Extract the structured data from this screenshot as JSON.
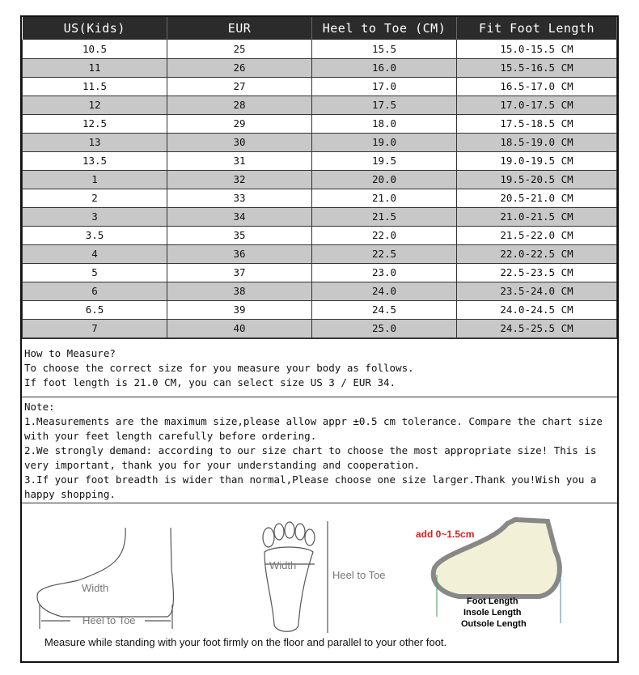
{
  "table": {
    "headers": [
      "US(Kids)",
      "EUR",
      "Heel to Toe (CM)",
      "Fit Foot Length"
    ],
    "rows": [
      [
        "10.5",
        "25",
        "15.5",
        "15.0-15.5 CM"
      ],
      [
        "11",
        "26",
        "16.0",
        "15.5-16.5 CM"
      ],
      [
        "11.5",
        "27",
        "17.0",
        "16.5-17.0 CM"
      ],
      [
        "12",
        "28",
        "17.5",
        "17.0-17.5 CM"
      ],
      [
        "12.5",
        "29",
        "18.0",
        "17.5-18.5 CM"
      ],
      [
        "13",
        "30",
        "19.0",
        "18.5-19.0 CM"
      ],
      [
        "13.5",
        "31",
        "19.5",
        "19.0-19.5 CM"
      ],
      [
        "1",
        "32",
        "20.0",
        "19.5-20.5 CM"
      ],
      [
        "2",
        "33",
        "21.0",
        "20.5-21.0 CM"
      ],
      [
        "3",
        "34",
        "21.5",
        "21.0-21.5 CM"
      ],
      [
        "3.5",
        "35",
        "22.0",
        "21.5-22.0 CM"
      ],
      [
        "4",
        "36",
        "22.5",
        "22.0-22.5 CM"
      ],
      [
        "5",
        "37",
        "23.0",
        "22.5-23.5 CM"
      ],
      [
        "6",
        "38",
        "24.0",
        "23.5-24.0 CM"
      ],
      [
        "6.5",
        "39",
        "24.5",
        "24.0-24.5 CM"
      ],
      [
        "7",
        "40",
        "25.0",
        "24.5-25.5 CM"
      ]
    ]
  },
  "measure": {
    "lines": [
      "How to Measure?",
      "To choose the correct size for you measure your body as follows.",
      "If foot length is 21.0 CM, you can select size US 3 / EUR 34."
    ]
  },
  "note": {
    "lines": [
      "Note:",
      "1.Measurements are the maximum size,please allow appr ±0.5 cm tolerance. Compare the chart size with your feet length carefully before ordering.",
      "2.We strongly demand: according to our size chart to choose the most appropriate size! This is very important, thank you for your understanding and cooperation.",
      "3.If your foot breadth is wider than normal,Please choose one size larger.Thank you!Wish you a happy shopping."
    ]
  },
  "diagram": {
    "side_width": "Width",
    "side_heel_to_toe": "Heel to Toe",
    "sole_width": "Width",
    "sole_heel_to_toe": "Heel to Toe",
    "shoe_add": "add 0~1.5cm",
    "foot_length": "Foot Length",
    "insole_length": "Insole Length",
    "outsole_length": "Outsole Length",
    "caption": "Measure while standing with your foot firmly on the floor and parallel to your other foot."
  },
  "colors": {
    "header_bg": "#2b2b2b",
    "alt_row": "#c8c8c8",
    "add_label": "#d42020"
  }
}
